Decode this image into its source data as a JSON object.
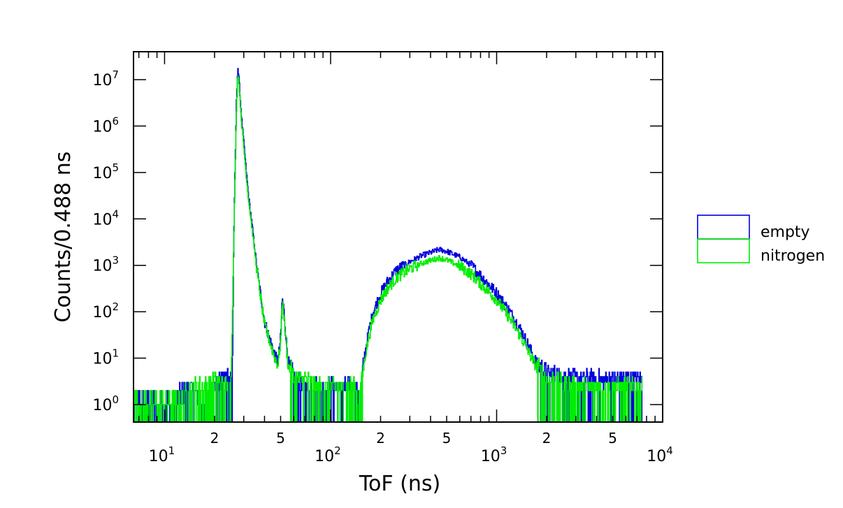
{
  "chart_data": {
    "type": "line",
    "title": "",
    "xlabel": "ToF (ns)",
    "ylabel": "Counts/0.488 ns",
    "xscale": "log",
    "yscale": "log",
    "xlim": [
      6.5,
      10000
    ],
    "ylim": [
      0.42,
      40000000
    ],
    "grid": false,
    "legend_position": "right-outside",
    "x_major_ticks": [
      {
        "value": 10,
        "base": "10",
        "exp": "1"
      },
      {
        "value": 100,
        "base": "10",
        "exp": "2"
      },
      {
        "value": 1000,
        "base": "10",
        "exp": "3"
      },
      {
        "value": 10000,
        "base": "10",
        "exp": "4"
      }
    ],
    "x_minor_labels": [
      {
        "value": 20,
        "label": "2"
      },
      {
        "value": 50,
        "label": "5"
      },
      {
        "value": 200,
        "label": "2"
      },
      {
        "value": 500,
        "label": "5"
      },
      {
        "value": 2000,
        "label": "2"
      },
      {
        "value": 5000,
        "label": "5"
      }
    ],
    "y_major_ticks": [
      {
        "value": 1,
        "base": "10",
        "exp": "0"
      },
      {
        "value": 10,
        "base": "10",
        "exp": "1"
      },
      {
        "value": 100,
        "base": "10",
        "exp": "2"
      },
      {
        "value": 1000,
        "base": "10",
        "exp": "3"
      },
      {
        "value": 10000,
        "base": "10",
        "exp": "4"
      },
      {
        "value": 100000,
        "base": "10",
        "exp": "5"
      },
      {
        "value": 1000000,
        "base": "10",
        "exp": "6"
      },
      {
        "value": 10000000,
        "base": "10",
        "exp": "7"
      }
    ],
    "series": [
      {
        "name": "empty",
        "color": "#0000dd",
        "points": [
          [
            6.5,
            1
          ],
          [
            9,
            1
          ],
          [
            11,
            1
          ],
          [
            14,
            2
          ],
          [
            17,
            1
          ],
          [
            20,
            2
          ],
          [
            22,
            3
          ],
          [
            24,
            4
          ],
          [
            25.5,
            3
          ],
          [
            26,
            3000
          ],
          [
            27,
            3000000
          ],
          [
            27.5,
            20000000
          ],
          [
            28,
            10000000
          ],
          [
            29,
            1500000
          ],
          [
            30,
            400000
          ],
          [
            31,
            100000
          ],
          [
            32,
            30000
          ],
          [
            34,
            5000
          ],
          [
            36,
            800
          ],
          [
            38,
            200
          ],
          [
            40,
            60
          ],
          [
            43,
            25
          ],
          [
            46,
            12
          ],
          [
            48,
            8
          ],
          [
            50,
            30
          ],
          [
            51,
            200
          ],
          [
            52,
            120
          ],
          [
            53,
            50
          ],
          [
            55,
            10
          ],
          [
            60,
            3
          ],
          [
            70,
            2
          ],
          [
            80,
            2
          ],
          [
            100,
            2
          ],
          [
            120,
            2
          ],
          [
            140,
            2
          ],
          [
            148,
            1
          ],
          [
            152,
            2
          ],
          [
            160,
            12
          ],
          [
            170,
            40
          ],
          [
            180,
            100
          ],
          [
            200,
            250
          ],
          [
            220,
            450
          ],
          [
            250,
            800
          ],
          [
            300,
            1200
          ],
          [
            350,
            1600
          ],
          [
            420,
            2000
          ],
          [
            450,
            2200
          ],
          [
            500,
            2000
          ],
          [
            600,
            1500
          ],
          [
            700,
            1000
          ],
          [
            800,
            600
          ],
          [
            1000,
            250
          ],
          [
            1200,
            100
          ],
          [
            1400,
            40
          ],
          [
            1600,
            15
          ],
          [
            1800,
            6
          ],
          [
            2000,
            4
          ],
          [
            3000,
            3
          ],
          [
            5000,
            3
          ],
          [
            7500,
            3
          ]
        ]
      },
      {
        "name": "nitrogen",
        "color": "#00ee00",
        "points": [
          [
            6.5,
            1
          ],
          [
            9,
            1
          ],
          [
            12,
            1
          ],
          [
            15,
            2
          ],
          [
            18,
            2
          ],
          [
            20,
            3
          ],
          [
            23,
            2
          ],
          [
            25,
            2
          ],
          [
            26,
            2500
          ],
          [
            27,
            2000000
          ],
          [
            27.5,
            15000000
          ],
          [
            28,
            8000000
          ],
          [
            29,
            1200000
          ],
          [
            30,
            300000
          ],
          [
            31,
            80000
          ],
          [
            32,
            25000
          ],
          [
            34,
            4000
          ],
          [
            36,
            700
          ],
          [
            38,
            180
          ],
          [
            40,
            50
          ],
          [
            43,
            22
          ],
          [
            46,
            10
          ],
          [
            48,
            7
          ],
          [
            50,
            25
          ],
          [
            51,
            180
          ],
          [
            52,
            100
          ],
          [
            53,
            40
          ],
          [
            55,
            8
          ],
          [
            60,
            3
          ],
          [
            70,
            3
          ],
          [
            80,
            2
          ],
          [
            100,
            2
          ],
          [
            120,
            2
          ],
          [
            140,
            2
          ],
          [
            148,
            1
          ],
          [
            152,
            2
          ],
          [
            160,
            10
          ],
          [
            170,
            30
          ],
          [
            180,
            70
          ],
          [
            200,
            180
          ],
          [
            220,
            320
          ],
          [
            250,
            550
          ],
          [
            300,
            850
          ],
          [
            350,
            1100
          ],
          [
            420,
            1350
          ],
          [
            450,
            1450
          ],
          [
            500,
            1300
          ],
          [
            600,
            950
          ],
          [
            700,
            650
          ],
          [
            800,
            400
          ],
          [
            1000,
            180
          ],
          [
            1200,
            70
          ],
          [
            1400,
            28
          ],
          [
            1600,
            11
          ],
          [
            1800,
            5
          ],
          [
            2000,
            3
          ],
          [
            3000,
            2
          ],
          [
            5000,
            2
          ],
          [
            7500,
            2
          ]
        ]
      }
    ]
  }
}
